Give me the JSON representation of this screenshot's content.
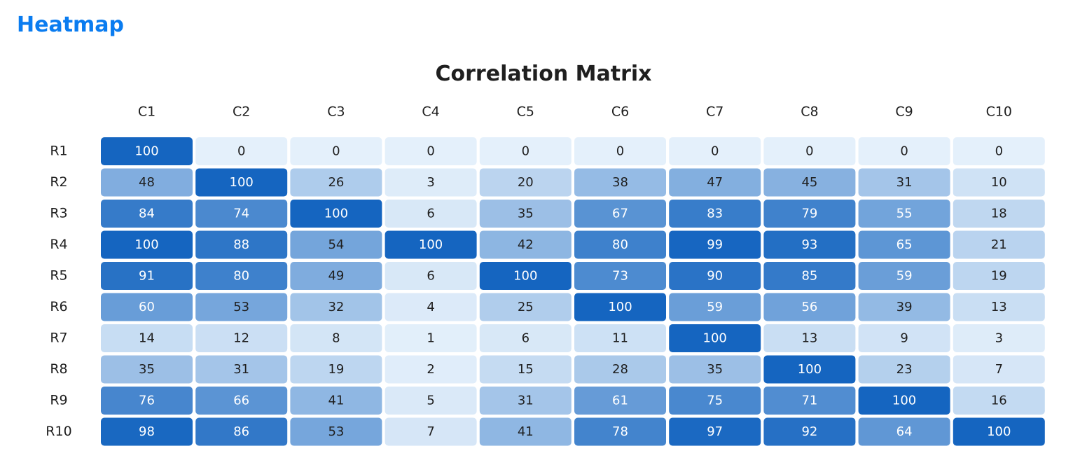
{
  "page": {
    "heading": "Heatmap"
  },
  "colors": {
    "heading": "#0a7cf0",
    "scale_low": "#e4f0fb",
    "scale_high": "#1565c0",
    "text_dark": "#1f1f1f",
    "text_light": "#ffffff"
  },
  "chart_data": {
    "type": "heatmap",
    "title": "Correlation Matrix",
    "xlabel": "",
    "ylabel": "",
    "columns": [
      "C1",
      "C2",
      "C3",
      "C4",
      "C5",
      "C6",
      "C7",
      "C8",
      "C9",
      "C10"
    ],
    "rows": [
      "R1",
      "R2",
      "R3",
      "R4",
      "R5",
      "R6",
      "R7",
      "R8",
      "R9",
      "R10"
    ],
    "value_range": [
      0,
      100
    ],
    "values": [
      [
        100,
        0,
        0,
        0,
        0,
        0,
        0,
        0,
        0,
        0
      ],
      [
        48,
        100,
        26,
        3,
        20,
        38,
        47,
        45,
        31,
        10
      ],
      [
        84,
        74,
        100,
        6,
        35,
        67,
        83,
        79,
        55,
        18
      ],
      [
        100,
        88,
        54,
        100,
        42,
        80,
        99,
        93,
        65,
        21
      ],
      [
        91,
        80,
        49,
        6,
        100,
        73,
        90,
        85,
        59,
        19
      ],
      [
        60,
        53,
        32,
        4,
        25,
        100,
        59,
        56,
        39,
        13
      ],
      [
        14,
        12,
        8,
        1,
        6,
        11,
        100,
        13,
        9,
        3
      ],
      [
        35,
        31,
        19,
        2,
        15,
        28,
        35,
        100,
        23,
        7
      ],
      [
        76,
        66,
        41,
        5,
        31,
        61,
        75,
        71,
        100,
        16
      ],
      [
        98,
        86,
        53,
        7,
        41,
        78,
        97,
        92,
        64,
        100
      ]
    ]
  }
}
